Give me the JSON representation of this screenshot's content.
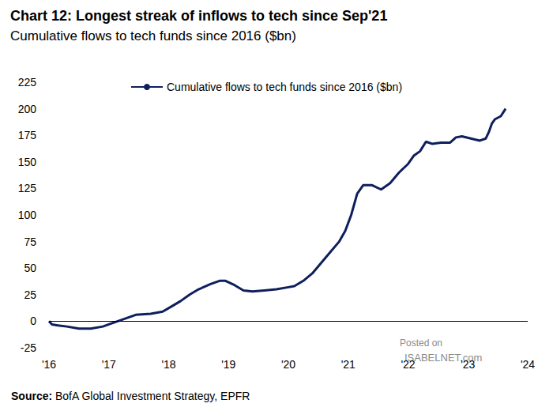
{
  "chart_data": {
    "type": "line",
    "title": "Chart 12: Longest streak of inflows to tech since Sep'21",
    "subtitle": "Cumulative flows to tech funds since 2016 ($bn)",
    "source": "Source: BofA Global Investment Strategy, EPFR",
    "annotations": [
      "Posted on",
      "ISABELNET.com"
    ],
    "legend": "top",
    "grid": false,
    "x": [
      2016.0,
      2016.05,
      2016.15,
      2016.3,
      2016.5,
      2016.7,
      2016.9,
      2017.0,
      2017.15,
      2017.3,
      2017.45,
      2017.7,
      2017.9,
      2018.05,
      2018.2,
      2018.35,
      2018.5,
      2018.7,
      2018.85,
      2018.95,
      2019.1,
      2019.25,
      2019.4,
      2019.6,
      2019.8,
      2020.0,
      2020.1,
      2020.25,
      2020.4,
      2020.55,
      2020.7,
      2020.85,
      2020.95,
      2021.05,
      2021.15,
      2021.25,
      2021.4,
      2021.55,
      2021.7,
      2021.85,
      2022.0,
      2022.1,
      2022.2,
      2022.3,
      2022.4,
      2022.55,
      2022.7,
      2022.8,
      2022.9,
      2023.05,
      2023.2,
      2023.3,
      2023.35,
      2023.4,
      2023.45,
      2023.55,
      2023.63
    ],
    "series": [
      {
        "name": "Cumulative flows to tech funds since 2016 ($bn)",
        "color": "#0f1f5c",
        "values": [
          0,
          -3,
          -4,
          -5,
          -7,
          -7,
          -5,
          -3,
          0,
          3,
          6,
          7,
          9,
          14,
          19,
          25,
          30,
          35,
          38,
          38,
          34,
          29,
          28,
          29,
          30,
          32,
          33,
          38,
          45,
          55,
          65,
          75,
          85,
          100,
          120,
          128,
          128,
          124,
          130,
          140,
          148,
          156,
          160,
          169,
          167,
          168,
          168,
          173,
          174,
          172,
          170,
          172,
          178,
          186,
          190,
          193,
          200
        ]
      }
    ],
    "xlim": [
      2016,
      2024
    ],
    "xticks": [
      {
        "value": 2016,
        "label": "'16"
      },
      {
        "value": 2017,
        "label": "'17"
      },
      {
        "value": 2018,
        "label": "'18"
      },
      {
        "value": 2019,
        "label": "'19"
      },
      {
        "value": 2020,
        "label": "'20"
      },
      {
        "value": 2021,
        "label": "'21"
      },
      {
        "value": 2022,
        "label": "'22"
      },
      {
        "value": 2023,
        "label": "'23"
      },
      {
        "value": 2024,
        "label": "'24"
      }
    ],
    "ylim": [
      -25,
      225
    ],
    "yticks": [
      -25,
      0,
      25,
      50,
      75,
      100,
      125,
      150,
      175,
      200,
      225
    ]
  }
}
